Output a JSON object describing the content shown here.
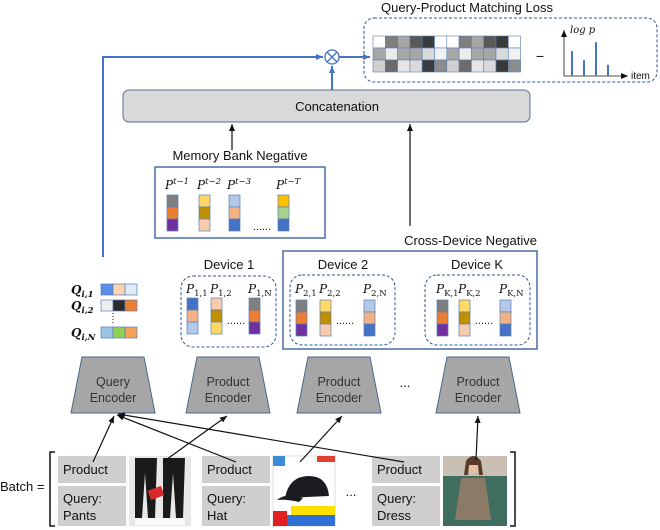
{
  "loss": {
    "title": "Query-Product Matching Loss",
    "minus": "−",
    "chart": {
      "ylabel": "log p",
      "xlabel": "item",
      "bars": [
        0.55,
        0.35,
        0.75,
        0.25
      ],
      "bar_color": "#4472c4"
    },
    "heatmap": [
      [
        "#ffffff",
        "#7f7f7f",
        "#a6a6a6",
        "#595959",
        "#3a3a3a",
        "#ffffff",
        "#ffffff",
        "#7f7f7f",
        "#a6a6a6",
        "#595959",
        "#3a3a3a",
        "#ffffff"
      ],
      [
        "#a6a6a6",
        "#ececec",
        "#a6a6a6",
        "#a6a6a6",
        "#d9d9d9",
        "#f2f2f2",
        "#a6a6a6",
        "#ececec",
        "#a6a6a6",
        "#a6a6a6",
        "#d9d9d9",
        "#f2f2f2"
      ],
      [
        "#d0d0d0",
        "#6b6b6b",
        "#e6e6e6",
        "#d9d9d9",
        "#3a3a3a",
        "#8c8c8c",
        "#d0d0d0",
        "#6b6b6b",
        "#e6e6e6",
        "#d9d9d9",
        "#3a3a3a",
        "#8c8c8c"
      ]
    ]
  },
  "concat": {
    "label": "Concatenation"
  },
  "memory_bank": {
    "title": "Memory Bank Negative",
    "dots": "......",
    "items": [
      {
        "base": "P",
        "sup": "t−1",
        "colors": [
          "#7f7f7f",
          "#ed7d31",
          "#7030a0"
        ]
      },
      {
        "base": "P",
        "sup": "t−2",
        "colors": [
          "#ffd966",
          "#bf9000",
          "#f8cbad"
        ]
      },
      {
        "base": "P",
        "sup": "t−3",
        "colors": [
          "#b4c7e7",
          "#f4b183",
          "#4472c4"
        ]
      },
      {
        "base": "P",
        "sup": "t−T",
        "colors": [
          "#ffc000",
          "#a9d18e",
          "#4472c4"
        ]
      }
    ]
  },
  "cross_device": {
    "title": "Cross-Device Negative"
  },
  "devices": [
    {
      "name": "Device 1",
      "dots": "......",
      "items": [
        {
          "base": "P",
          "sub": "1,1",
          "colors": [
            "#4472c4",
            "#f4b183",
            "#b4c7e7"
          ]
        },
        {
          "base": "P",
          "sub": "1,2",
          "colors": [
            "#f8cbad",
            "#bf9000",
            "#ffd966"
          ]
        },
        {
          "base": "P",
          "sub": "1,N",
          "colors": [
            "#7f7f7f",
            "#ed7d31",
            "#7030a0"
          ]
        }
      ]
    },
    {
      "name": "Device 2",
      "dots": "......",
      "items": [
        {
          "base": "P",
          "sub": "2,1",
          "colors": [
            "#7f7f7f",
            "#ed7d31",
            "#7030a0"
          ]
        },
        {
          "base": "P",
          "sub": "2,2",
          "colors": [
            "#ffd966",
            "#bf9000",
            "#f8cbad"
          ]
        },
        {
          "base": "P",
          "sub": "2,N",
          "colors": [
            "#b4c7e7",
            "#f4b183",
            "#4472c4"
          ]
        }
      ]
    },
    {
      "name": "Device K",
      "dots": "......",
      "items": [
        {
          "base": "P",
          "sub": "K,1",
          "colors": [
            "#7f7f7f",
            "#ed7d31",
            "#7030a0"
          ]
        },
        {
          "base": "P",
          "sub": "K,2",
          "colors": [
            "#ffd966",
            "#bf9000",
            "#f8cbad"
          ]
        },
        {
          "base": "P",
          "sub": "K,N",
          "colors": [
            "#b4c7e7",
            "#f4b183",
            "#4472c4"
          ]
        }
      ]
    }
  ],
  "queries": [
    {
      "base": "Q",
      "sub": "i,1",
      "colors": [
        "#5b8ee6",
        "#fbd5b0",
        "#deebf7"
      ]
    },
    {
      "base": "Q",
      "sub": "i,2",
      "colors": [
        "#eeeeee",
        "#2b2b2b",
        "#ed7d31"
      ]
    },
    {
      "base": "Q",
      "sub": "i,N",
      "colors": [
        "#9dc3e6",
        "#92d050",
        "#f4a15a"
      ]
    }
  ],
  "encoders": [
    {
      "line1": "Query",
      "line2": "Encoder"
    },
    {
      "line1": "Product",
      "line2": "Encoder"
    },
    {
      "line1": "Product",
      "line2": "Encoder"
    },
    {
      "line1": "Product",
      "line2": "Encoder"
    }
  ],
  "encoder_dots": "...",
  "batch": {
    "label": "Batch =",
    "dots": "...",
    "items": [
      {
        "product": "Product",
        "query_line1": "Query:",
        "query_line2": "Pants",
        "image": "pants"
      },
      {
        "product": "Product",
        "query_line1": "Query:",
        "query_line2": "Hat",
        "image": "hat"
      },
      {
        "product": "Product",
        "query_line1": "Query:",
        "query_line2": "Dress",
        "image": "dress"
      }
    ]
  },
  "colors": {
    "accent_blue": "#4472c4",
    "box_stroke": "#2f5597",
    "encoder_fill": "#a6a6a6",
    "cell_fill": "#d0cece",
    "concat_fill": "#d9d9d9"
  }
}
